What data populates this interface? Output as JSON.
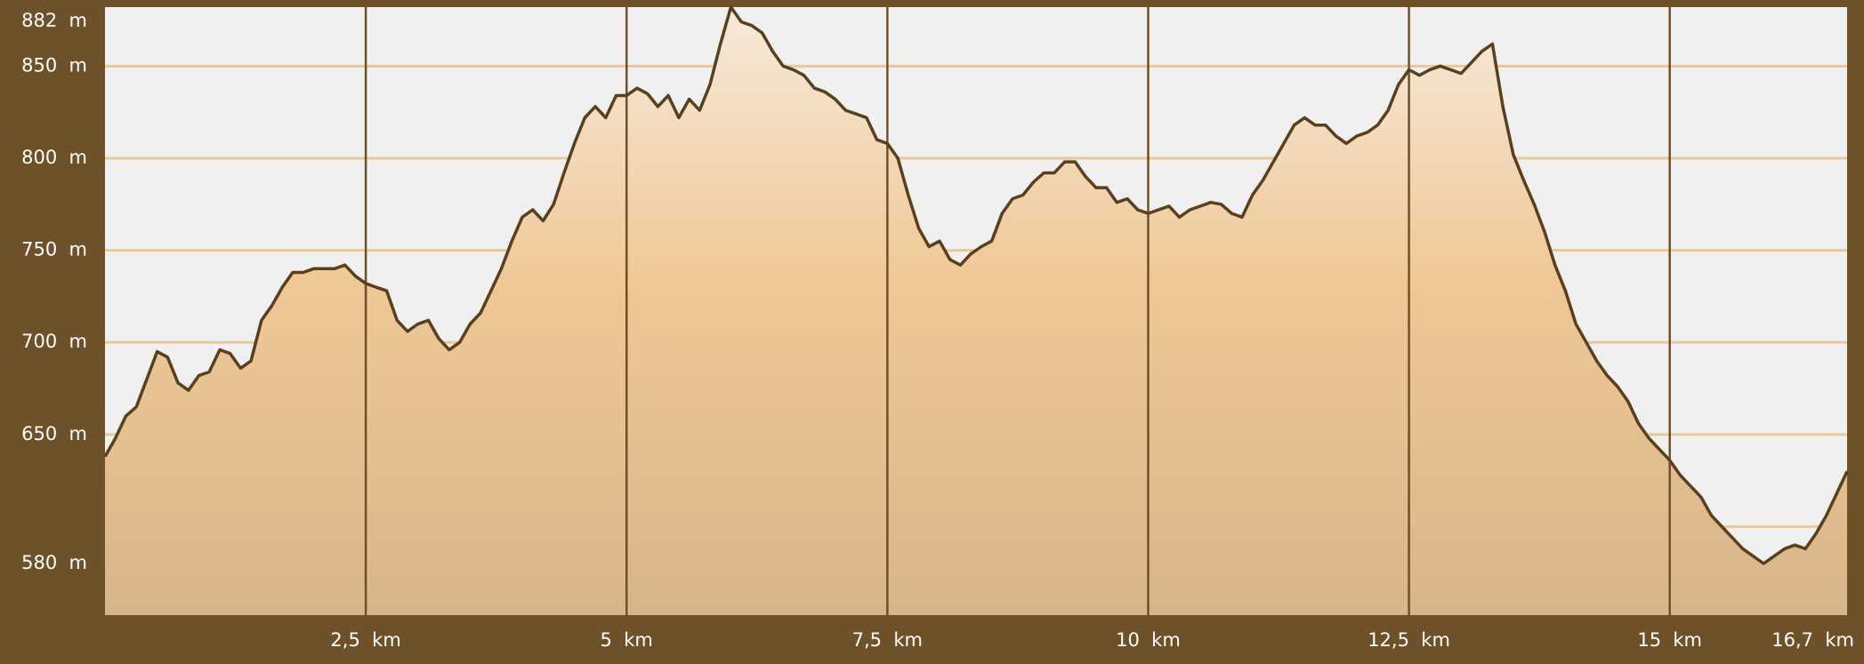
{
  "chart_data": {
    "type": "area",
    "title": "",
    "xlabel": "",
    "ylabel": "",
    "x_unit": "km",
    "y_unit": "m",
    "xlim": [
      0,
      16.7
    ],
    "ylim": [
      552,
      882
    ],
    "grid": true,
    "legend": "none",
    "y_ticks": [
      {
        "value": 882,
        "label": "882  m"
      },
      {
        "value": 850,
        "label": "850  m"
      },
      {
        "value": 800,
        "label": "800  m"
      },
      {
        "value": 750,
        "label": "750  m"
      },
      {
        "value": 700,
        "label": "700  m"
      },
      {
        "value": 650,
        "label": "650  m"
      },
      {
        "value": 580,
        "label": "580  m"
      }
    ],
    "y_extra_gridlines": [
      600
    ],
    "x_ticks": [
      {
        "value": 2.5,
        "label": "2,5  km"
      },
      {
        "value": 5,
        "label": "5  km"
      },
      {
        "value": 7.5,
        "label": "7,5  km"
      },
      {
        "value": 10,
        "label": "10  km"
      },
      {
        "value": 12.5,
        "label": "12,5  km"
      },
      {
        "value": 15,
        "label": "15  km"
      },
      {
        "value": 16.7,
        "label": "16,7  km"
      }
    ],
    "series": [
      {
        "name": "",
        "x": [
          0,
          0.1,
          0.2,
          0.3,
          0.4,
          0.5,
          0.6,
          0.7,
          0.8,
          0.9,
          1.0,
          1.1,
          1.2,
          1.3,
          1.4,
          1.5,
          1.6,
          1.7,
          1.8,
          1.9,
          2.0,
          2.1,
          2.2,
          2.3,
          2.4,
          2.5,
          2.6,
          2.7,
          2.8,
          2.9,
          3.0,
          3.1,
          3.2,
          3.3,
          3.4,
          3.5,
          3.6,
          3.7,
          3.8,
          3.9,
          4.0,
          4.1,
          4.2,
          4.3,
          4.4,
          4.5,
          4.6,
          4.7,
          4.8,
          4.9,
          5.0,
          5.1,
          5.2,
          5.3,
          5.4,
          5.5,
          5.6,
          5.7,
          5.8,
          5.9,
          6.0,
          6.1,
          6.2,
          6.3,
          6.4,
          6.5,
          6.6,
          6.7,
          6.8,
          6.9,
          7.0,
          7.1,
          7.2,
          7.3,
          7.4,
          7.5,
          7.6,
          7.7,
          7.8,
          7.9,
          8.0,
          8.1,
          8.2,
          8.3,
          8.4,
          8.5,
          8.6,
          8.7,
          8.8,
          8.9,
          9.0,
          9.1,
          9.2,
          9.3,
          9.4,
          9.5,
          9.6,
          9.7,
          9.8,
          9.9,
          10.0,
          10.1,
          10.2,
          10.3,
          10.4,
          10.5,
          10.6,
          10.7,
          10.8,
          10.9,
          11.0,
          11.1,
          11.2,
          11.3,
          11.4,
          11.5,
          11.6,
          11.7,
          11.8,
          11.9,
          12.0,
          12.1,
          12.2,
          12.3,
          12.4,
          12.5,
          12.6,
          12.7,
          12.8,
          12.9,
          13.0,
          13.1,
          13.2,
          13.3,
          13.4,
          13.5,
          13.6,
          13.7,
          13.8,
          13.9,
          14.0,
          14.1,
          14.2,
          14.3,
          14.4,
          14.5,
          14.6,
          14.7,
          14.8,
          14.9,
          15.0,
          15.1,
          15.2,
          15.3,
          15.4,
          15.5,
          15.6,
          15.7,
          15.8,
          15.9,
          16.0,
          16.1,
          16.2,
          16.3,
          16.4,
          16.5,
          16.6,
          16.7
        ],
        "y": [
          638,
          648,
          660,
          665,
          680,
          695,
          692,
          678,
          674,
          682,
          684,
          696,
          694,
          686,
          690,
          712,
          720,
          730,
          738,
          738,
          740,
          740,
          740,
          742,
          736,
          732,
          730,
          728,
          712,
          706,
          710,
          712,
          702,
          696,
          700,
          710,
          716,
          728,
          740,
          755,
          768,
          772,
          766,
          775,
          792,
          808,
          822,
          828,
          822,
          834,
          834,
          838,
          835,
          828,
          834,
          822,
          832,
          826,
          840,
          862,
          882,
          874,
          872,
          868,
          858,
          850,
          848,
          845,
          838,
          836,
          832,
          826,
          824,
          822,
          810,
          808,
          800,
          780,
          762,
          752,
          755,
          745,
          742,
          748,
          752,
          755,
          770,
          778,
          780,
          787,
          792,
          792,
          798,
          798,
          790,
          784,
          784,
          776,
          778,
          772,
          770,
          772,
          774,
          768,
          772,
          774,
          776,
          775,
          770,
          768,
          780,
          788,
          798,
          808,
          818,
          822,
          818,
          818,
          812,
          808,
          812,
          814,
          818,
          826,
          840,
          848,
          845,
          848,
          850,
          848,
          846,
          852,
          858,
          862,
          828,
          802,
          788,
          775,
          760,
          742,
          728,
          710,
          700,
          690,
          682,
          676,
          668,
          656,
          648,
          642,
          636,
          628,
          622,
          616,
          606,
          600,
          594,
          588,
          584,
          580,
          584,
          588,
          590,
          588,
          596,
          606,
          618,
          630
        ]
      }
    ]
  }
}
